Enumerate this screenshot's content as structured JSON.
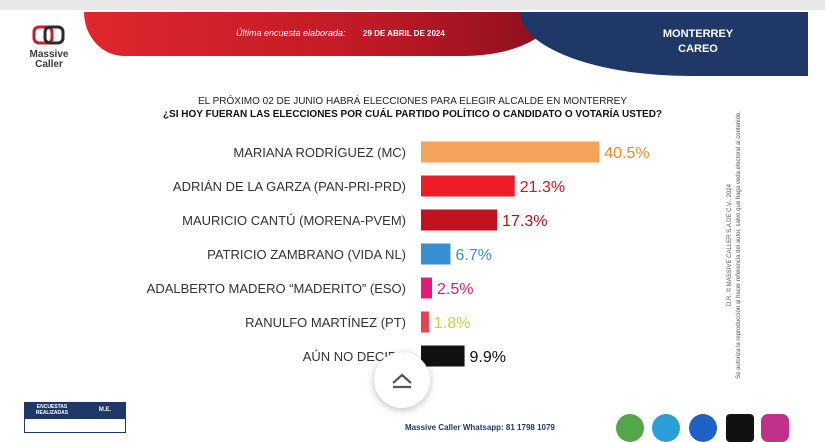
{
  "header": {
    "date_label": "Última encuesta elaborada:",
    "date": "29 DE ABRIL DE 2024",
    "city": "MONTERREY",
    "subtitle": "CAREO",
    "logo": "Massive Caller"
  },
  "question": {
    "line1": "EL PRÓXIMO 02 DE JUNIO HABRÁ ELECCIONES PARA ELEGIR ALCALDE EN MONTERREY",
    "line2": "¿SI HOY FUERAN LAS ELECCIONES POR CUÁL PARTIDO POLÍTICO O CANDIDATO O VOTARÍA USTED?"
  },
  "side_note": {
    "line1": "D.R. © MASSIVE CALLER S.A DE C.V., 2024",
    "line2": "Se autoriza la reproducción al hacer referencia del autor, salvo que haga veda electoral al contenido."
  },
  "stats_box": {
    "col1": "ENCUESTAS REALIZADAS",
    "col2": "M.E."
  },
  "footer": {
    "whatsapp": "Massive Caller Whatsapp: 81 1798 1079"
  },
  "colors": {
    "header_red": "#e0272d",
    "navy": "#1f3868"
  },
  "icons": [
    "chevron-up-icon",
    "whatsapp-icon",
    "telegram-icon",
    "facebook-icon",
    "x-icon",
    "instagram-icon"
  ],
  "chart_data": {
    "type": "bar",
    "orientation": "horizontal",
    "categories": [
      "MARIANA RODRÍGUEZ (MC)",
      "ADRIÁN DE LA GARZA  (PAN-PRI-PRD)",
      "MAURICIO CANTÚ (MORENA-PVEM)",
      "PATRICIO ZAMBRANO (VIDA NL)",
      "ADALBERTO MADERO “MADERITO” (ESO)",
      "RANULFO MARTÍNEZ (PT)",
      "AÚN NO DECIDE"
    ],
    "values": [
      40.5,
      21.3,
      17.3,
      6.7,
      2.5,
      1.8,
      9.9
    ],
    "labels": [
      "40.5%",
      "21.3%",
      "17.3%",
      "6.7%",
      "2.5%",
      "1.8%",
      "9.9%"
    ],
    "colors": [
      "#f5a25a",
      "#ee1c25",
      "#c1121f",
      "#3a8fd3",
      "#e6197a",
      "#e8424f",
      "#111111"
    ],
    "label_colors": [
      "#f08a2c",
      "#d8141f",
      "#b5111d",
      "#3a8fd3",
      "#e6197a",
      "#c9d431",
      "#111111"
    ]
  }
}
